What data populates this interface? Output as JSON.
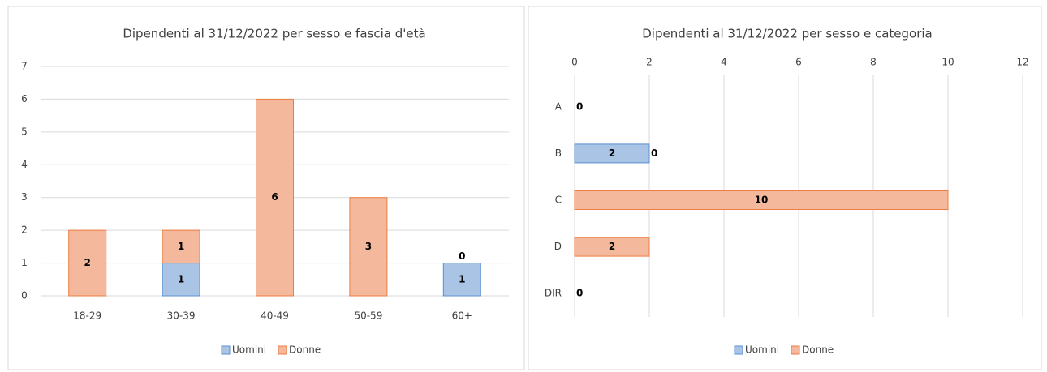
{
  "chart_data": [
    {
      "type": "bar",
      "title": "Dipendenti al 31/12/2022 per sesso e fascia d'età",
      "categories": [
        "18-29",
        "30-39",
        "40-49",
        "50-59",
        "60+"
      ],
      "series": [
        {
          "name": "Uomini",
          "color": "#a9c4e4",
          "stroke": "#5b8fd0",
          "values": [
            null,
            1,
            null,
            null,
            1
          ]
        },
        {
          "name": "Donne",
          "color": "#f4b89c",
          "stroke": "#ec7d3f",
          "values": [
            2,
            1,
            6,
            3,
            0
          ]
        }
      ],
      "ylim": [
        0,
        7
      ],
      "yticks": [
        0,
        1,
        2,
        3,
        4,
        5,
        6,
        7
      ],
      "grid": true,
      "stacked": true,
      "legend": "bottom"
    },
    {
      "type": "barh",
      "title": "Dipendenti al 31/12/2022 per sesso e categoria",
      "categories": [
        "A",
        "B",
        "C",
        "D",
        "DIR"
      ],
      "series": [
        {
          "name": "Uomini",
          "color": "#a9c4e4",
          "stroke": "#5b8fd0",
          "values": [
            0,
            2,
            null,
            null,
            0
          ]
        },
        {
          "name": "Donne",
          "color": "#f4b89c",
          "stroke": "#ec7d3f",
          "values": [
            null,
            0,
            10,
            2,
            null
          ]
        }
      ],
      "xlim": [
        0,
        12
      ],
      "xticks": [
        0,
        2,
        4,
        6,
        8,
        10,
        12
      ],
      "grid": true,
      "stacked": true,
      "legend": "bottom"
    }
  ]
}
